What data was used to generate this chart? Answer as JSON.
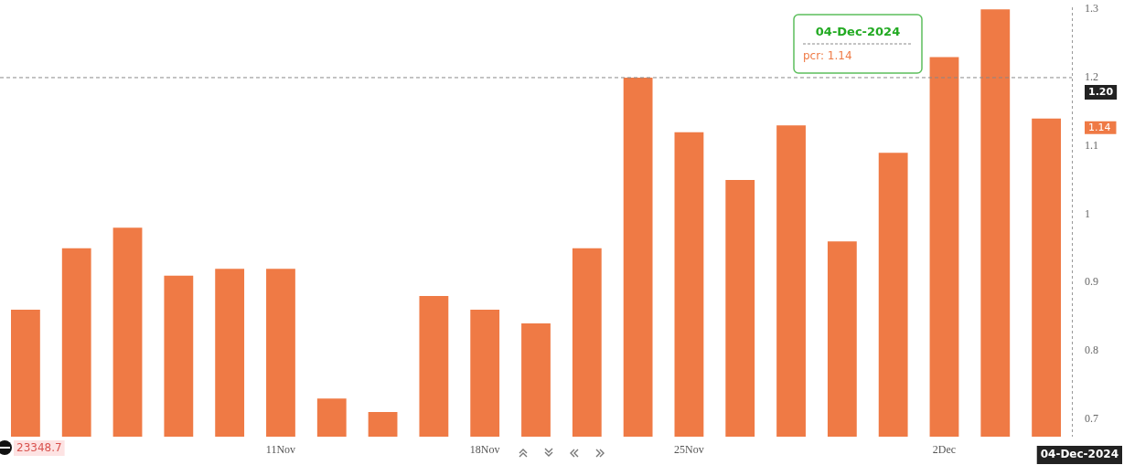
{
  "chart_data": {
    "type": "bar",
    "categories": [
      null,
      null,
      null,
      null,
      null,
      "11Nov",
      null,
      null,
      null,
      "18Nov",
      null,
      null,
      null,
      "25Nov",
      null,
      null,
      null,
      null,
      "2Dec",
      null,
      null
    ],
    "values": [
      0.86,
      0.95,
      0.98,
      0.91,
      0.92,
      0.92,
      0.73,
      0.71,
      0.88,
      0.86,
      0.84,
      0.95,
      1.2,
      1.12,
      1.05,
      1.13,
      0.96,
      1.09,
      1.23,
      1.3,
      1.14
    ],
    "color": "#ef7a45",
    "ylim": [
      0.674,
      1.303
    ],
    "yticks": [
      0.7,
      0.8,
      0.9,
      1,
      1.1,
      1.2,
      1.3
    ],
    "grid": false,
    "legend": false,
    "ref_lines": [
      {
        "axis": "y",
        "value": 1.2,
        "label": "1.20",
        "color": "#888888",
        "line_style": "dashed"
      }
    ],
    "annotations": [
      "04-Dec-2024",
      "pcr: 1.14",
      "1.14",
      "23348.7",
      "04-Dec-2024"
    ]
  }
}
